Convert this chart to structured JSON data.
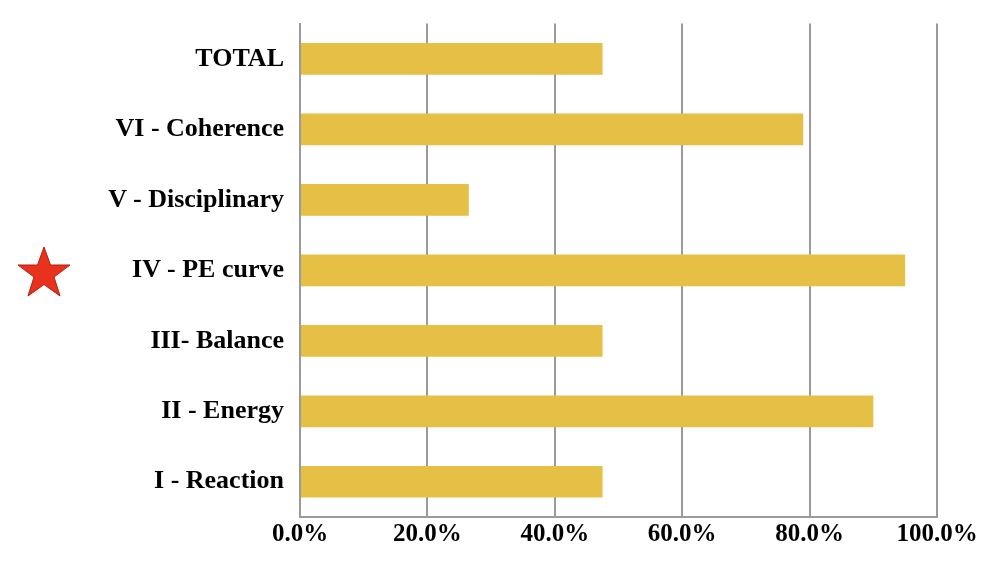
{
  "chart_data": {
    "type": "bar",
    "orientation": "horizontal",
    "categories": [
      "TOTAL",
      "VI - Coherence",
      "V - Disciplinary",
      "IV - PE curve",
      "III- Balance",
      "II - Energy",
      "I - Reaction"
    ],
    "values": [
      47.5,
      79,
      26.5,
      95,
      47.5,
      90,
      47.5
    ],
    "color": "#e6bf45",
    "xlim": [
      0,
      100
    ],
    "xticks": [
      {
        "value": 0,
        "label": "0.0%"
      },
      {
        "value": 20,
        "label": "20.0%"
      },
      {
        "value": 40,
        "label": "40.0%"
      },
      {
        "value": 60,
        "label": "60.0%"
      },
      {
        "value": 80,
        "label": "80.0%"
      },
      {
        "value": 100,
        "label": "100.0%"
      }
    ],
    "grid": "x",
    "legend": false
  }
}
